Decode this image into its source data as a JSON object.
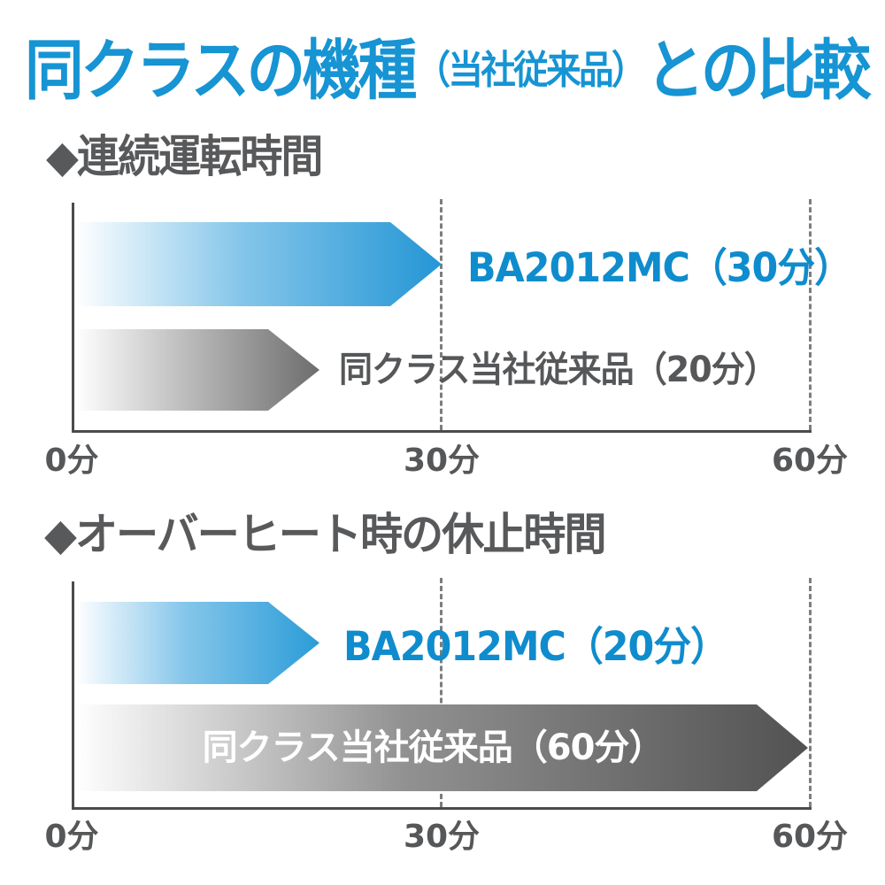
{
  "background": "#ffffff",
  "title": {
    "text_full": "同クラスの機種（当社従来品）との比較",
    "prefix": "同クラスの機種",
    "paren": "（当社従来品）",
    "suffix": "との比較",
    "color": "#1694d3"
  },
  "axis_style": {
    "line_color": "#4b4b4b",
    "dashed_gridline_color": "#7d7d7d",
    "tick_label_color": "#565759"
  },
  "charts": [
    {
      "heading": "◆連続運転時間",
      "heading_color": "#58595b",
      "xtick_labels": [
        "0分",
        "30分",
        "60分"
      ],
      "bars": [
        {
          "product": "BA2012MC",
          "minutes": 30,
          "label": "BA2012MC（30分）",
          "label_color": "#0f8ccd",
          "label_position": "right-of-bar",
          "gradient": {
            "start": "#ffffff",
            "mid": "#85c6ea",
            "end": "#2496d5"
          }
        },
        {
          "product": "同クラス当社従来品",
          "minutes": 20,
          "label": "同クラス当社従来品（20分）",
          "label_color": "#565759",
          "label_position": "right-of-bar",
          "gradient": {
            "start": "#ffffff",
            "mid": "#bcbcbc",
            "end": "#6d6d6d"
          }
        }
      ]
    },
    {
      "heading": "◆オーバーヒート時の休止時間",
      "heading_color": "#58595b",
      "xtick_labels": [
        "0分",
        "30分",
        "60分"
      ],
      "bars": [
        {
          "product": "BA2012MC",
          "minutes": 20,
          "label": "BA2012MC（20分）",
          "label_color": "#0f8ccd",
          "label_position": "right-of-bar",
          "gradient": {
            "start": "#ffffff",
            "mid": "#85c6ea",
            "end": "#2b9cd8"
          }
        },
        {
          "product": "同クラス当社従来品",
          "minutes": 60,
          "label": "同クラス当社従来品（60分）",
          "label_color": "#ffffff",
          "label_position": "inside-bar",
          "gradient": {
            "start": "#ffffff",
            "mid": "#919191",
            "end": "#525252"
          }
        }
      ]
    }
  ],
  "chart_data": [
    {
      "type": "bar",
      "orientation": "horizontal",
      "title": "連続運転時間",
      "categories": [
        "BA2012MC",
        "同クラス当社従来品"
      ],
      "values": [
        30,
        20
      ],
      "unit": "分",
      "xlim": [
        0,
        60
      ],
      "xticks": [
        0,
        30,
        60
      ],
      "xtick_labels": [
        "0分",
        "30分",
        "60分"
      ],
      "grid": "dashed vertical lines at 30 and 60",
      "legend": "none"
    },
    {
      "type": "bar",
      "orientation": "horizontal",
      "title": "オーバーヒート時の休止時間",
      "categories": [
        "BA2012MC",
        "同クラス当社従来品"
      ],
      "values": [
        20,
        60
      ],
      "unit": "分",
      "xlim": [
        0,
        60
      ],
      "xticks": [
        0,
        30,
        60
      ],
      "xtick_labels": [
        "0分",
        "30分",
        "60分"
      ],
      "grid": "dashed vertical lines at 30 and 60",
      "legend": "none"
    }
  ]
}
